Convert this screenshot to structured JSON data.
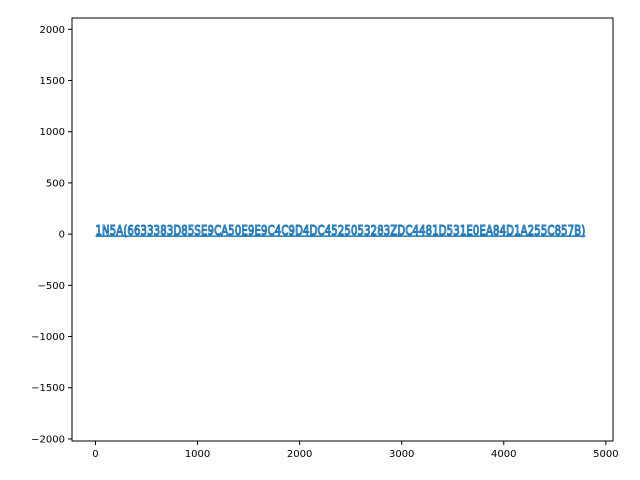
{
  "chart_data": {
    "type": "line",
    "title": "",
    "xlabel": "",
    "ylabel": "",
    "xlim": [
      -230,
      5070
    ],
    "ylim": [
      -2020,
      2110
    ],
    "x_ticks": [
      0,
      1000,
      2000,
      3000,
      4000,
      5000
    ],
    "x_tick_labels": [
      "0",
      "1000",
      "2000",
      "3000",
      "4000",
      "5000"
    ],
    "y_ticks": [
      -2000,
      -1500,
      -1000,
      -500,
      0,
      500,
      1000,
      1500,
      2000
    ],
    "y_tick_labels": [
      "−2000",
      "−1500",
      "−1000",
      "−500",
      "0",
      "500",
      "1000",
      "1500",
      "2000"
    ],
    "grid": false,
    "series": [
      {
        "label": "1N5A(6633383D85SE9CA50E9E9C4C9D4DC4525053283ZDC4481D531E0EA84D1A255C857B)",
        "x": [
          0,
          4800
        ],
        "y": [
          0,
          0
        ]
      }
    ],
    "colors": {
      "series": "#1f77b4",
      "axis": "#000000",
      "background": "#ffffff"
    }
  }
}
